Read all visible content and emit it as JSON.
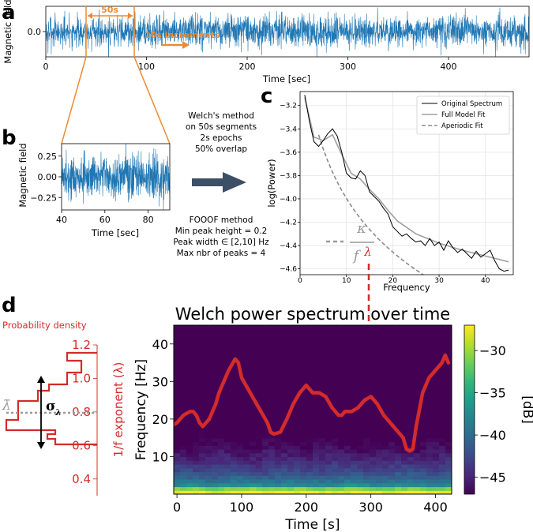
{
  "colors": {
    "signal": "#1f77b4",
    "orange": "#ee8a30",
    "red": "#d42b2b",
    "arrow": "#3d4f66",
    "grey": "#8c8c8c",
    "viridis": [
      "#440154",
      "#482878",
      "#3e4989",
      "#31688e",
      "#26828e",
      "#1f9e89",
      "#35b779",
      "#6ece58",
      "#b5de2b",
      "#fde725"
    ]
  },
  "panels": {
    "a": "a",
    "b": "b",
    "c": "c",
    "d": "d"
  },
  "annotations": {
    "window": "50s",
    "increments": "10s increments",
    "welch_lines": [
      "Welch's method",
      "on 50s segments",
      "2s epochs",
      "50% overlap"
    ],
    "fooof_lines": [
      "FOOOF method",
      "Min peak height = 0.2",
      "Peak width ∈ [2,10] Hz",
      "Max nbr of peaks = 4"
    ],
    "prob_density": "Probability density",
    "lambda_bar": "λ̄",
    "sigma": "σ",
    "sigma_sub": "λ",
    "kappa": "κ",
    "f_char": "f",
    "lambda": "λ"
  },
  "chart_data": [
    {
      "id": "a",
      "type": "line",
      "title": "",
      "xlabel": "Time [sec]",
      "ylabel": "Magnetic field",
      "xlim": [
        0,
        480
      ],
      "ylim": [
        -0.4,
        0.4
      ],
      "xticks": [
        "0",
        "100",
        "200",
        "300",
        "400"
      ],
      "yticks": [
        "0.0"
      ],
      "series": [
        {
          "noise_amplitude": 0.28
        }
      ],
      "window_sec": [
        40,
        90
      ]
    },
    {
      "id": "b",
      "type": "line",
      "title": "",
      "xlabel": "Time [sec]",
      "ylabel": "Magnetic field",
      "xlim": [
        40,
        90
      ],
      "ylim": [
        -0.4,
        0.4
      ],
      "xticks": [
        "40",
        "60",
        "80"
      ],
      "yticks": [
        "0.25",
        "0.00",
        "−0.25"
      ],
      "series": [
        {
          "noise_amplitude": 0.28
        }
      ]
    },
    {
      "id": "c",
      "type": "line",
      "title": "",
      "xlabel": "Frequency",
      "ylabel": "log(Power)",
      "xlim": [
        0,
        46
      ],
      "ylim": [
        -4.65,
        -3.08
      ],
      "xticks": [
        "0",
        "10",
        "20",
        "30",
        "40"
      ],
      "yticks": [
        "−3.2",
        "−3.4",
        "−3.6",
        "−3.8",
        "−4.0",
        "−4.2",
        "−4.4",
        "−4.6"
      ],
      "legend": [
        "Original Spectrum",
        "Full Model Fit",
        "Aperiodic Fit"
      ],
      "legend_position": "top-right",
      "grid": true,
      "original": {
        "x": [
          1,
          2,
          3,
          4,
          5,
          6,
          7,
          8,
          9,
          10,
          11,
          12,
          13,
          14,
          15,
          16,
          17,
          18,
          19,
          20,
          21,
          22,
          23,
          24,
          25,
          26,
          27,
          28,
          29,
          30,
          31,
          32,
          33,
          34,
          35,
          36,
          37,
          38,
          39,
          40,
          41,
          42,
          43,
          44,
          45
        ],
        "y": [
          -3.11,
          -3.33,
          -3.51,
          -3.55,
          -3.5,
          -3.44,
          -3.4,
          -3.46,
          -3.6,
          -3.78,
          -3.82,
          -3.83,
          -3.76,
          -3.8,
          -3.94,
          -3.98,
          -4.02,
          -4.08,
          -4.13,
          -4.24,
          -4.28,
          -4.32,
          -4.3,
          -4.34,
          -4.37,
          -4.36,
          -4.4,
          -4.34,
          -4.4,
          -4.37,
          -4.44,
          -4.36,
          -4.42,
          -4.46,
          -4.43,
          -4.47,
          -4.51,
          -4.45,
          -4.5,
          -4.47,
          -4.44,
          -4.53,
          -4.6,
          -4.62,
          -4.61
        ]
      },
      "full_model": {
        "x": [
          1,
          3,
          5,
          7,
          9,
          11,
          13,
          15,
          17,
          19,
          21,
          25,
          30,
          35,
          40,
          45
        ],
        "y": [
          -3.13,
          -3.47,
          -3.5,
          -3.45,
          -3.62,
          -3.78,
          -3.83,
          -3.92,
          -4.0,
          -4.1,
          -4.19,
          -4.3,
          -4.38,
          -4.44,
          -4.49,
          -4.54
        ]
      },
      "aperiodic": {
        "b": -3.45,
        "k": 3.0,
        "chi": 1.6,
        "x_start": 4,
        "x_end": 45
      }
    },
    {
      "id": "d",
      "type": "heatmap",
      "title": "Welch power spectrum over time",
      "xlabel": "Time [s]",
      "ylabel": "Frequency [Hz]",
      "xlim": [
        -5,
        425
      ],
      "ylim": [
        0,
        45
      ],
      "xticks": [
        "0",
        "100",
        "200",
        "300",
        "400"
      ],
      "yticks": [
        "10",
        "20",
        "30",
        "40"
      ],
      "colorbar": {
        "label": "[dB]",
        "range": [
          -47,
          -27
        ],
        "ticks": [
          "−30",
          "−35",
          "−40",
          "−45"
        ]
      },
      "exponent_axis": {
        "label": "1/f exponent (λ)",
        "range": [
          0.3,
          1.2
        ],
        "ticks": [
          "1.2",
          "1.0",
          "0.8",
          "0.6",
          "0.4"
        ]
      },
      "exponent_trace": {
        "x": [
          -5,
          0,
          10,
          20,
          25,
          30,
          35,
          40,
          45,
          50,
          55,
          60,
          65,
          70,
          80,
          90,
          95,
          100,
          110,
          120,
          130,
          140,
          145,
          150,
          160,
          170,
          180,
          190,
          200,
          210,
          220,
          230,
          240,
          250,
          255,
          260,
          270,
          280,
          290,
          300,
          310,
          320,
          330,
          340,
          350,
          355,
          360,
          365,
          370,
          380,
          390,
          400,
          410,
          415,
          420
        ],
        "y": [
          18.5,
          19,
          21,
          22,
          22,
          21,
          19,
          18,
          19,
          20,
          22,
          24,
          27,
          29,
          33,
          36,
          35,
          31,
          28,
          25,
          22,
          19,
          16.5,
          16,
          16.5,
          20,
          24,
          27,
          29,
          27,
          27,
          26,
          23,
          21,
          21,
          22,
          22,
          23,
          25,
          26,
          24,
          21,
          19,
          17,
          15,
          12,
          11.5,
          12,
          18,
          27,
          31,
          33,
          35,
          37,
          35
        ]
      }
    }
  ]
}
